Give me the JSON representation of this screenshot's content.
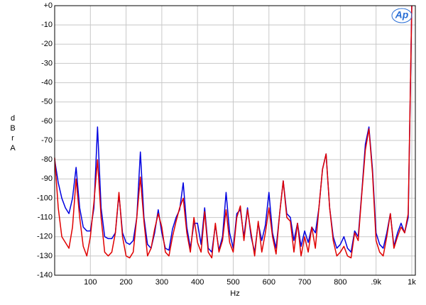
{
  "chart_data": {
    "type": "line",
    "y_label": "dBr A",
    "x_label": "Hz",
    "logo": "Ap",
    "x": [
      0,
      10,
      20,
      30,
      40,
      50,
      60,
      70,
      80,
      90,
      100,
      110,
      120,
      130,
      140,
      150,
      160,
      170,
      180,
      190,
      200,
      210,
      220,
      230,
      240,
      250,
      260,
      270,
      280,
      290,
      300,
      310,
      320,
      330,
      340,
      350,
      360,
      370,
      380,
      390,
      400,
      410,
      420,
      430,
      440,
      450,
      460,
      470,
      480,
      490,
      500,
      510,
      520,
      530,
      540,
      550,
      560,
      570,
      580,
      590,
      600,
      610,
      620,
      630,
      640,
      650,
      660,
      670,
      680,
      690,
      700,
      710,
      720,
      730,
      740,
      750,
      760,
      770,
      780,
      790,
      800,
      810,
      820,
      830,
      840,
      850,
      860,
      870,
      880,
      890,
      900,
      910,
      920,
      930,
      940,
      950,
      960,
      970,
      980,
      990,
      1000
    ],
    "series": [
      {
        "color": "#0000e0",
        "values": [
          -80,
          -92,
          -100,
          -105,
          -108,
          -100,
          -84,
          -105,
          -115,
          -117,
          -117,
          -105,
          -63,
          -105,
          -120,
          -121,
          -121,
          -118,
          -98,
          -118,
          -123,
          -124,
          -122,
          -110,
          -76,
          -110,
          -124,
          -126,
          -118,
          -106,
          -118,
          -126,
          -127,
          -116,
          -110,
          -106,
          -92,
          -115,
          -126,
          -113,
          -113,
          -124,
          -105,
          -126,
          -128,
          -114,
          -127,
          -120,
          -97,
          -118,
          -126,
          -108,
          -106,
          -120,
          -105,
          -120,
          -128,
          -113,
          -122,
          -114,
          -97,
          -118,
          -126,
          -108,
          -91,
          -108,
          -110,
          -122,
          -113,
          -125,
          -117,
          -123,
          -115,
          -118,
          -105,
          -85,
          -77,
          -105,
          -120,
          -126,
          -124,
          -120,
          -126,
          -128,
          -117,
          -120,
          -97,
          -72,
          -63,
          -85,
          -118,
          -124,
          -126,
          -118,
          -108,
          -125,
          -118,
          -113,
          -118,
          -110,
          0
        ]
      },
      {
        "color": "#e00000",
        "values": [
          -79,
          -105,
          -120,
          -123,
          -126,
          -115,
          -90,
          -110,
          -125,
          -130,
          -120,
          -102,
          -80,
          -110,
          -128,
          -130,
          -128,
          -118,
          -97,
          -120,
          -130,
          -131,
          -128,
          -110,
          -89,
          -112,
          -130,
          -126,
          -116,
          -108,
          -115,
          -128,
          -130,
          -120,
          -112,
          -105,
          -100,
          -118,
          -128,
          -110,
          -123,
          -128,
          -107,
          -128,
          -131,
          -113,
          -128,
          -122,
          -106,
          -123,
          -128,
          -110,
          -104,
          -122,
          -106,
          -118,
          -130,
          -112,
          -128,
          -118,
          -105,
          -120,
          -129,
          -108,
          -91,
          -110,
          -112,
          -128,
          -113,
          -130,
          -120,
          -128,
          -115,
          -126,
          -105,
          -85,
          -77,
          -105,
          -122,
          -130,
          -128,
          -125,
          -130,
          -131,
          -118,
          -122,
          -98,
          -75,
          -64,
          -87,
          -122,
          -128,
          -130,
          -120,
          -108,
          -126,
          -120,
          -115,
          -118,
          -108,
          0
        ]
      }
    ],
    "xlim": [
      0,
      1010
    ],
    "ylim": [
      -140,
      0
    ],
    "xticks": [
      100,
      200,
      300,
      400,
      500,
      600,
      700,
      800,
      {
        "value": 900,
        "label": ".9k"
      },
      {
        "value": 1000,
        "label": "1k"
      }
    ],
    "yticks": [
      {
        "value": 0,
        "label": "+0"
      },
      -10,
      -20,
      -30,
      -40,
      -50,
      -60,
      -70,
      -80,
      -90,
      -100,
      -110,
      -120,
      -130,
      -140
    ],
    "grid": true
  }
}
